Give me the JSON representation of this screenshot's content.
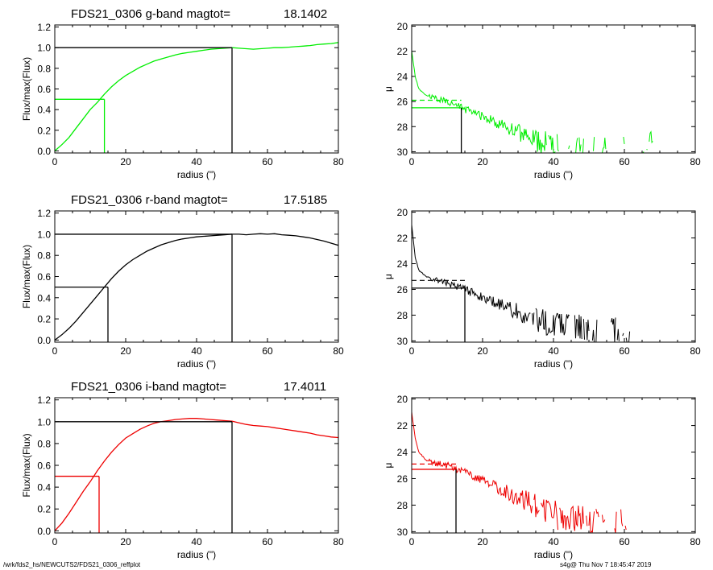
{
  "footer": {
    "path": "/wrk/fds2_hs/NEWCUTS2/FDS21_0306_reffplot",
    "stamp": "s4g@  Thu Nov  7 18:45:47 2019"
  },
  "chart_data": [
    {
      "type": "line",
      "title_left": "FDS21_0306 g-band  magtot=",
      "title_value": "18.1402",
      "xlabel": "radius (\")",
      "ylabel": "Flux/max(Flux)",
      "xlim": [
        0,
        80
      ],
      "ylim": [
        -0.02,
        1.22
      ],
      "xticks": [
        0,
        20,
        40,
        60,
        80
      ],
      "yticks": [
        "0.0",
        "0.2",
        "0.4",
        "0.6",
        "0.8",
        "1.0",
        "1.2"
      ],
      "color": "#00ee00",
      "series": [
        {
          "x": [
            0,
            2,
            4,
            6,
            8,
            10,
            12,
            14,
            16,
            18,
            20,
            22,
            24,
            26,
            28,
            30,
            32,
            34,
            36,
            38,
            40,
            42,
            44,
            46,
            48,
            50,
            52,
            54,
            56,
            58,
            60,
            62,
            64,
            66,
            68,
            70,
            72,
            74,
            76,
            78,
            80
          ],
          "y": [
            0.0,
            0.06,
            0.13,
            0.22,
            0.31,
            0.4,
            0.47,
            0.55,
            0.62,
            0.68,
            0.73,
            0.77,
            0.81,
            0.84,
            0.87,
            0.89,
            0.91,
            0.93,
            0.945,
            0.955,
            0.965,
            0.975,
            0.985,
            0.99,
            0.995,
            1.0,
            0.995,
            0.99,
            0.985,
            0.99,
            0.995,
            1.0,
            1.0,
            1.005,
            1.01,
            1.015,
            1.02,
            1.03,
            1.035,
            1.04,
            1.05
          ]
        }
      ],
      "reff": 14,
      "total_radius": 50,
      "half_level": 0.5,
      "total_level": 1.0
    },
    {
      "type": "line",
      "xlabel": "radius (\")",
      "ylabel": "μ",
      "xlim": [
        0,
        80
      ],
      "ylim": [
        30.1,
        19.9
      ],
      "xticks": [
        0,
        20,
        40,
        60,
        80
      ],
      "yticks": [
        "20",
        "22",
        "24",
        "26",
        "28",
        "30"
      ],
      "color": "#00ee00",
      "seed": 11,
      "x_max": 69,
      "profile": [
        [
          0,
          22.0
        ],
        [
          1,
          24.0
        ],
        [
          2,
          25.0
        ],
        [
          4,
          25.5
        ],
        [
          6,
          25.7
        ],
        [
          10,
          26.0
        ],
        [
          15,
          26.6
        ],
        [
          20,
          27.2
        ],
        [
          25,
          27.8
        ],
        [
          30,
          28.5
        ],
        [
          35,
          29.1
        ],
        [
          40,
          29.6
        ],
        [
          45,
          30.0
        ],
        [
          55,
          30.4
        ],
        [
          70,
          30.6
        ]
      ],
      "half_mu": 26.5,
      "total_mu": 25.9,
      "reff": 14
    },
    {
      "type": "line",
      "title_left": "FDS21_0306 r-band  magtot=",
      "title_value": "17.5185",
      "xlabel": "radius (\")",
      "ylabel": "Flux/max(Flux)",
      "xlim": [
        0,
        80
      ],
      "ylim": [
        -0.02,
        1.22
      ],
      "xticks": [
        0,
        20,
        40,
        60,
        80
      ],
      "yticks": [
        "0.0",
        "0.2",
        "0.4",
        "0.6",
        "0.8",
        "1.0",
        "1.2"
      ],
      "color": "#000000",
      "series": [
        {
          "x": [
            0,
            2,
            4,
            6,
            8,
            10,
            12,
            14,
            16,
            18,
            20,
            22,
            24,
            26,
            28,
            30,
            32,
            34,
            36,
            38,
            40,
            42,
            44,
            46,
            48,
            50,
            52,
            54,
            56,
            58,
            60,
            62,
            64,
            66,
            68,
            70,
            72,
            74,
            76,
            78,
            80
          ],
          "y": [
            0.0,
            0.05,
            0.11,
            0.18,
            0.26,
            0.34,
            0.42,
            0.5,
            0.58,
            0.65,
            0.71,
            0.76,
            0.8,
            0.84,
            0.87,
            0.9,
            0.92,
            0.94,
            0.955,
            0.965,
            0.975,
            0.98,
            0.985,
            0.99,
            0.995,
            1.0,
            1.0,
            0.995,
            1.0,
            1.005,
            1.0,
            1.005,
            0.995,
            0.99,
            0.985,
            0.975,
            0.965,
            0.95,
            0.935,
            0.915,
            0.895
          ]
        }
      ],
      "reff": 15,
      "total_radius": 50,
      "half_level": 0.5,
      "total_level": 1.0
    },
    {
      "type": "line",
      "xlabel": "radius (\")",
      "ylabel": "μ",
      "xlim": [
        0,
        80
      ],
      "ylim": [
        30.1,
        19.9
      ],
      "xticks": [
        0,
        20,
        40,
        60,
        80
      ],
      "yticks": [
        "20",
        "22",
        "24",
        "26",
        "28",
        "30"
      ],
      "color": "#000000",
      "seed": 23,
      "x_max": 63,
      "profile": [
        [
          0,
          21.0
        ],
        [
          1,
          23.5
        ],
        [
          2,
          24.5
        ],
        [
          4,
          25.0
        ],
        [
          6,
          25.2
        ],
        [
          10,
          25.5
        ],
        [
          15,
          26.0
        ],
        [
          20,
          26.6
        ],
        [
          25,
          27.2
        ],
        [
          30,
          27.8
        ],
        [
          35,
          28.3
        ],
        [
          40,
          28.8
        ],
        [
          45,
          29.2
        ],
        [
          50,
          29.5
        ],
        [
          55,
          29.8
        ],
        [
          60,
          30.0
        ],
        [
          65,
          30.2
        ]
      ],
      "half_mu": 25.9,
      "total_mu": 25.3,
      "reff": 15
    },
    {
      "type": "line",
      "title_left": "FDS21_0306 i-band  magtot=",
      "title_value": "17.4011",
      "xlabel": "radius (\")",
      "ylabel": "Flux/max(Flux)",
      "xlim": [
        0,
        80
      ],
      "ylim": [
        -0.02,
        1.22
      ],
      "xticks": [
        0,
        20,
        40,
        60,
        80
      ],
      "yticks": [
        "0.0",
        "0.2",
        "0.4",
        "0.6",
        "0.8",
        "1.0",
        "1.2"
      ],
      "color": "#ee0000",
      "series": [
        {
          "x": [
            0,
            2,
            4,
            6,
            8,
            10,
            12,
            14,
            16,
            18,
            20,
            22,
            24,
            26,
            28,
            30,
            32,
            34,
            36,
            38,
            40,
            42,
            44,
            46,
            48,
            50,
            52,
            54,
            56,
            58,
            60,
            62,
            64,
            66,
            68,
            70,
            72,
            74,
            76,
            78,
            80
          ],
          "y": [
            0.0,
            0.07,
            0.16,
            0.26,
            0.36,
            0.45,
            0.55,
            0.64,
            0.72,
            0.79,
            0.85,
            0.89,
            0.93,
            0.96,
            0.985,
            1.0,
            1.01,
            1.02,
            1.025,
            1.03,
            1.03,
            1.025,
            1.02,
            1.015,
            1.01,
            1.005,
            0.99,
            0.975,
            0.965,
            0.96,
            0.955,
            0.945,
            0.935,
            0.925,
            0.915,
            0.905,
            0.895,
            0.88,
            0.87,
            0.86,
            0.855
          ]
        }
      ],
      "reff": 12.5,
      "total_radius": 50,
      "half_level": 0.5,
      "total_level": 1.0
    },
    {
      "type": "line",
      "xlabel": "radius (\")",
      "ylabel": "μ",
      "xlim": [
        0,
        80
      ],
      "ylim": [
        30.1,
        19.9
      ],
      "xticks": [
        0,
        20,
        40,
        60,
        80
      ],
      "yticks": [
        "20",
        "22",
        "24",
        "26",
        "28",
        "30"
      ],
      "color": "#ee0000",
      "seed": 37,
      "x_max": 61,
      "profile": [
        [
          0,
          21.0
        ],
        [
          1,
          23.0
        ],
        [
          2,
          24.0
        ],
        [
          4,
          24.6
        ],
        [
          6,
          24.8
        ],
        [
          10,
          25.0
        ],
        [
          15,
          25.5
        ],
        [
          20,
          26.1
        ],
        [
          25,
          26.8
        ],
        [
          30,
          27.4
        ],
        [
          35,
          28.0
        ],
        [
          40,
          28.6
        ],
        [
          45,
          29.2
        ],
        [
          50,
          29.6
        ],
        [
          55,
          29.9
        ],
        [
          60,
          30.2
        ]
      ],
      "half_mu": 25.3,
      "total_mu": 24.9,
      "reff": 12.5
    }
  ]
}
